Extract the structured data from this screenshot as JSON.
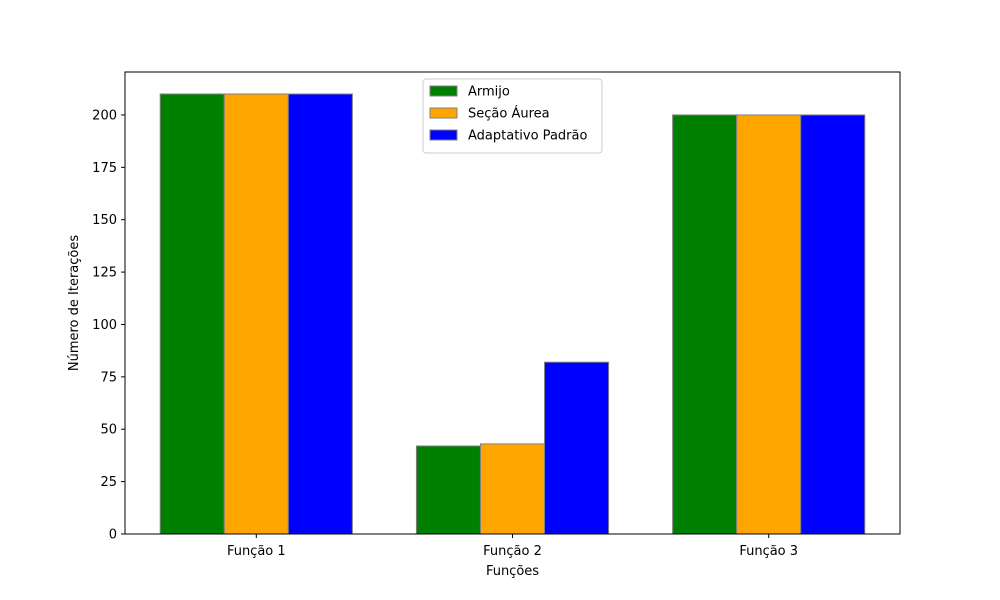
{
  "chart_data": {
    "type": "bar",
    "title": "",
    "xlabel": "Funções",
    "ylabel": "Número de Iterações",
    "categories": [
      "Função 1",
      "Função 2",
      "Função 3"
    ],
    "series": [
      {
        "name": "Armijo",
        "color": "#008000",
        "values": [
          210,
          42,
          200
        ]
      },
      {
        "name": "Seção Áurea",
        "color": "#ffa500",
        "values": [
          210,
          43,
          200
        ]
      },
      {
        "name": "Adaptativo Padrão",
        "color": "#0000ff",
        "values": [
          210,
          82,
          200
        ]
      }
    ],
    "ylim": [
      0,
      220.5
    ],
    "yticks": [
      0,
      25,
      50,
      75,
      100,
      125,
      150,
      175,
      200
    ],
    "grid": false,
    "legend_position": "top-center",
    "bar_edge_color": "#808080"
  }
}
